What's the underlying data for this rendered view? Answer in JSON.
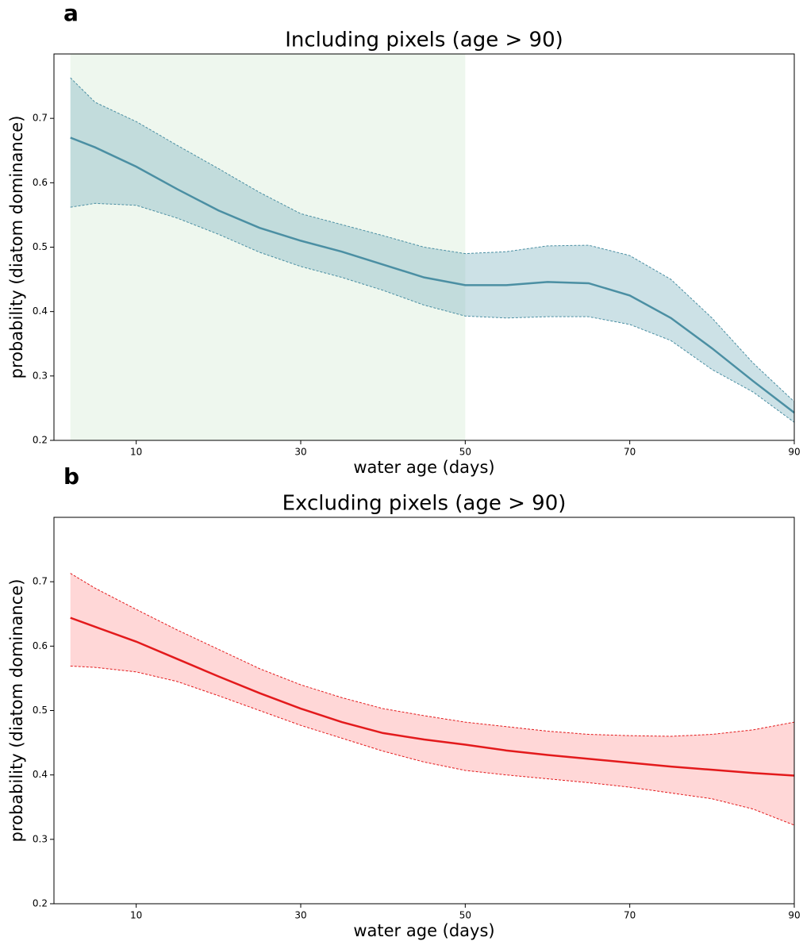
{
  "chart_data": [
    {
      "type": "line",
      "panel_label": "a",
      "title": "Including pixels (age > 90)",
      "xlabel": "water age (days)",
      "ylabel": "probability (diatom dominance)",
      "x": [
        2,
        5,
        10,
        15,
        20,
        25,
        30,
        35,
        40,
        45,
        50,
        55,
        60,
        65,
        70,
        75,
        80,
        85,
        90
      ],
      "values": [
        0.67,
        0.655,
        0.625,
        0.59,
        0.557,
        0.53,
        0.51,
        0.493,
        0.473,
        0.453,
        0.441,
        0.441,
        0.446,
        0.444,
        0.425,
        0.39,
        0.343,
        0.292,
        0.243
      ],
      "upper": [
        0.763,
        0.725,
        0.695,
        0.658,
        0.622,
        0.585,
        0.552,
        0.535,
        0.518,
        0.5,
        0.49,
        0.493,
        0.502,
        0.503,
        0.487,
        0.45,
        0.39,
        0.32,
        0.26
      ],
      "lower": [
        0.562,
        0.568,
        0.565,
        0.545,
        0.52,
        0.492,
        0.47,
        0.453,
        0.433,
        0.41,
        0.393,
        0.39,
        0.392,
        0.392,
        0.38,
        0.355,
        0.31,
        0.275,
        0.228
      ],
      "color": "#4b8fa3",
      "band_color": "#7fb3c0",
      "highlight_xrange": [
        2,
        50
      ],
      "highlight_color": "#eef7ee",
      "xlim": [
        0,
        90
      ],
      "ylim": [
        0.2,
        0.8
      ],
      "xticks": [
        10,
        30,
        50,
        70,
        90
      ],
      "yticks": [
        0.2,
        0.3,
        0.4,
        0.5,
        0.6,
        0.7
      ]
    },
    {
      "type": "line",
      "panel_label": "b",
      "title": "Excluding pixels (age > 90)",
      "xlabel": "water age (days)",
      "ylabel": "probability (diatom dominance)",
      "x": [
        2,
        5,
        10,
        15,
        20,
        25,
        30,
        35,
        40,
        45,
        50,
        55,
        60,
        65,
        70,
        75,
        80,
        85,
        90
      ],
      "values": [
        0.644,
        0.63,
        0.607,
        0.58,
        0.553,
        0.527,
        0.503,
        0.482,
        0.465,
        0.455,
        0.447,
        0.438,
        0.431,
        0.425,
        0.419,
        0.413,
        0.408,
        0.403,
        0.399
      ],
      "upper": [
        0.713,
        0.69,
        0.657,
        0.625,
        0.595,
        0.565,
        0.54,
        0.52,
        0.503,
        0.492,
        0.482,
        0.475,
        0.468,
        0.463,
        0.461,
        0.46,
        0.463,
        0.47,
        0.482
      ],
      "lower": [
        0.569,
        0.567,
        0.56,
        0.545,
        0.523,
        0.5,
        0.477,
        0.457,
        0.437,
        0.42,
        0.407,
        0.4,
        0.394,
        0.388,
        0.381,
        0.372,
        0.363,
        0.347,
        0.322
      ],
      "color": "#e31a1c",
      "band_color": "#ff9a9a",
      "xlim": [
        0,
        90
      ],
      "ylim": [
        0.2,
        0.8
      ],
      "xticks": [
        10,
        30,
        50,
        70,
        90
      ],
      "yticks": [
        0.2,
        0.3,
        0.4,
        0.5,
        0.6,
        0.7
      ]
    }
  ]
}
